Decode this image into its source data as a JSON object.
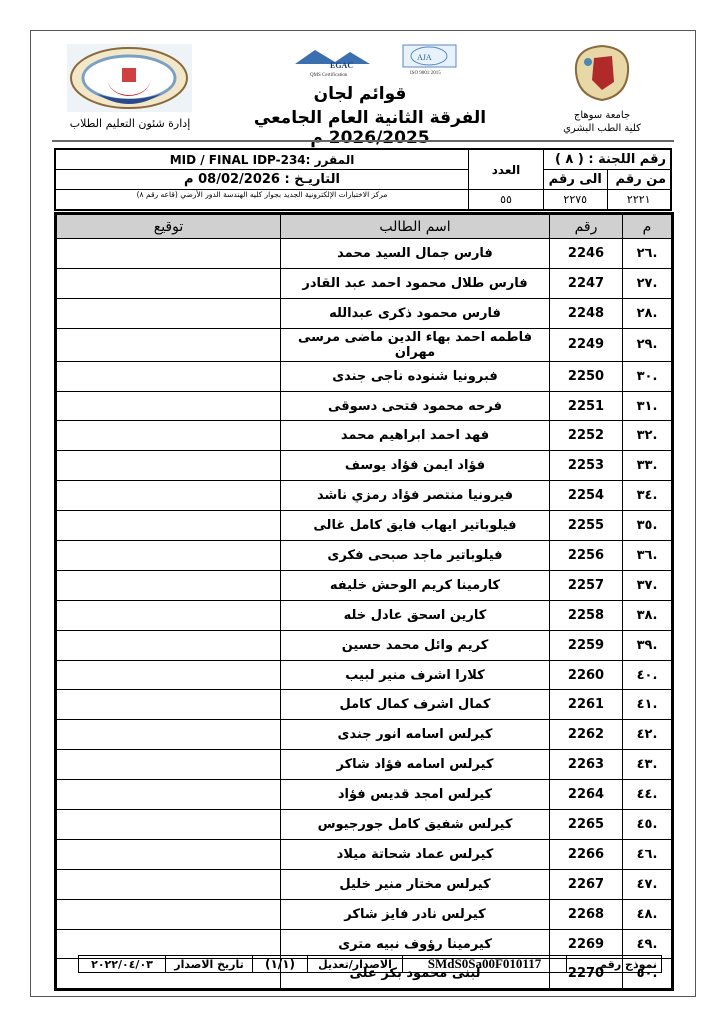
{
  "header": {
    "title": "قوائم لجان",
    "subtitle": "الفرقة الثانية العام الجامعي 2026/2025 م",
    "university": "جامعة سوهاج",
    "faculty": "كلية الطب البشري",
    "department": "إدارة شئون التعليم الطلاب",
    "logos": {
      "egac": "EGAC Accredited QMS Certification EOMS Certification CAB # 012207",
      "aja": "AJA ISO 9001:2015 ISO 21001:2018"
    }
  },
  "info": {
    "committee_label": "رقم اللجنة : ( ٨ )",
    "from_label": "من رقم",
    "to_label": "الى رقم",
    "from_value": "٢٢٢١",
    "to_value": "٢٢٧٥",
    "count_label": "العدد",
    "count_value": "٥٥",
    "course": "المقرر :MID / FINAL IDP-234",
    "date": "التاريـخ : 08/02/2026 م",
    "location": "مركز الاختبارات الإلكترونية الجديد بجوار كليه الهندسة الدور الأرضي (قاعه رقم ٨)"
  },
  "table": {
    "headers": {
      "index": "م",
      "id": "رقم",
      "name": "اسم الطالب",
      "signature": "توقيع"
    },
    "rows": [
      {
        "index": ".٢٦",
        "id": "2246",
        "name": "فارس جمال السيد محمد"
      },
      {
        "index": ".٢٧",
        "id": "2247",
        "name": "فارس طلال محمود احمد عبد القادر"
      },
      {
        "index": ".٢٨",
        "id": "2248",
        "name": "فارس محمود ذكرى عبدالله"
      },
      {
        "index": ".٢٩",
        "id": "2249",
        "name": "فاطمه احمد بهاء الدين ماضى مرسى مهران"
      },
      {
        "index": ".٣٠",
        "id": "2250",
        "name": "فبرونيا شنوده ناجى جندى"
      },
      {
        "index": ".٣١",
        "id": "2251",
        "name": "فرحه محمود فتحى دسوقى"
      },
      {
        "index": ".٣٢",
        "id": "2252",
        "name": "فهد احمد ابراهيم محمد"
      },
      {
        "index": ".٣٣",
        "id": "2253",
        "name": "فؤاد ايمن فؤاد يوسف"
      },
      {
        "index": ".٣٤",
        "id": "2254",
        "name": "فيرونيا منتصر فؤاد رمزي ناشد"
      },
      {
        "index": ".٣٥",
        "id": "2255",
        "name": "فيلوباتير ايهاب فايق كامل غالى"
      },
      {
        "index": ".٣٦",
        "id": "2256",
        "name": "فيلوباتير ماجد صبحى فكرى"
      },
      {
        "index": ".٣٧",
        "id": "2257",
        "name": "كارمينا كريم الوحش خليفه"
      },
      {
        "index": ".٣٨",
        "id": "2258",
        "name": "كارين اسحق عادل خله"
      },
      {
        "index": ".٣٩",
        "id": "2259",
        "name": "كريم وائل محمد حسين"
      },
      {
        "index": ".٤٠",
        "id": "2260",
        "name": "كلارا اشرف منير لبيب"
      },
      {
        "index": ".٤١",
        "id": "2261",
        "name": "كمال اشرف كمال كامل"
      },
      {
        "index": ".٤٢",
        "id": "2262",
        "name": "كيرلس اسامه انور جندى"
      },
      {
        "index": ".٤٣",
        "id": "2263",
        "name": "كيرلس اسامه فؤاد شاكر"
      },
      {
        "index": ".٤٤",
        "id": "2264",
        "name": "كيرلس امجد قديس فؤاد"
      },
      {
        "index": ".٤٥",
        "id": "2265",
        "name": "كيرلس شفيق كامل جورجيوس"
      },
      {
        "index": ".٤٦",
        "id": "2266",
        "name": "كيرلس عماد شحاتة ميلاد"
      },
      {
        "index": ".٤٧",
        "id": "2267",
        "name": "كيرلس مختار منير خليل"
      },
      {
        "index": ".٤٨",
        "id": "2268",
        "name": "كيرلس نادر فايز شاكر"
      },
      {
        "index": ".٤٩",
        "id": "2269",
        "name": "كيرمينا رؤوف نبيه مترى"
      },
      {
        "index": ".٥٠",
        "id": "2270",
        "name": "لبنى محمود بكر على"
      }
    ]
  },
  "footer": {
    "form_label": "نموذج رقم",
    "form_code": "SMdS0Sa00F010117",
    "version_label": "الاصدار/تعديل",
    "version_value": "(١/١)",
    "issue_label": "تاريخ الاصدار",
    "issue_date": "٢٠٢٢/٠٤/٠٣"
  }
}
